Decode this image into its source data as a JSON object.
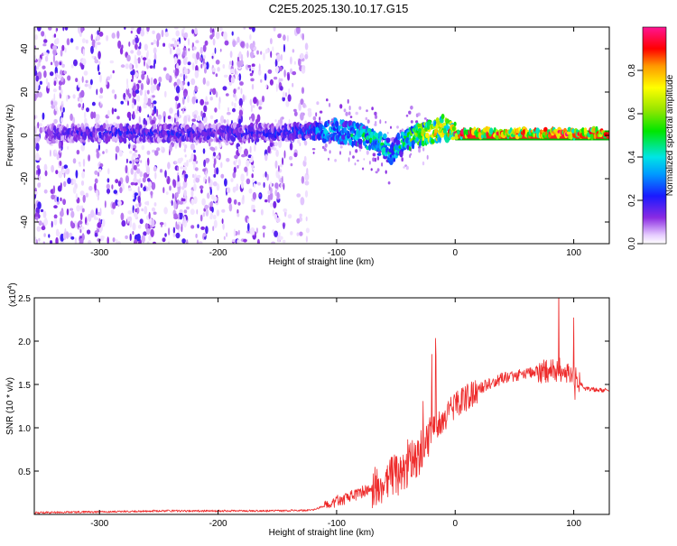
{
  "title": "C2E5.2025.130.10.17.G15",
  "chart_data": [
    {
      "type": "heatmap",
      "xlabel": "Height of straight line (km)",
      "ylabel": "Frequency (Hz)",
      "xlim": [
        -355,
        130
      ],
      "ylim": [
        -50,
        50
      ],
      "xticks": [
        -300,
        -200,
        -100,
        0,
        100
      ],
      "yticks": [
        -40,
        -20,
        0,
        20,
        40
      ],
      "colorbar": {
        "label": "Normalized spectral amplitude",
        "range": [
          0.0,
          1.0
        ],
        "ticks": [
          0.0,
          0.2,
          0.4,
          0.6,
          0.8
        ],
        "tick_labels": [
          "0.0",
          "0.2",
          "0.4",
          "0.6",
          "0.8"
        ]
      },
      "ridge": {
        "x": [
          -340,
          -300,
          -250,
          -200,
          -150,
          -120,
          -100,
          -90,
          -80,
          -70,
          -60,
          -55,
          -45,
          -35,
          -25,
          -15,
          -10,
          -5,
          0,
          20,
          40,
          60,
          80,
          100,
          125
        ],
        "frequency": [
          1,
          1,
          1,
          1,
          1,
          2,
          2,
          1,
          0,
          -2,
          -5,
          -8,
          -4,
          0,
          1,
          2,
          4,
          2,
          1,
          1,
          1,
          1,
          1,
          1,
          1
        ],
        "amplitude": [
          0.2,
          0.25,
          0.25,
          0.25,
          0.25,
          0.35,
          0.45,
          0.5,
          0.55,
          0.55,
          0.5,
          0.45,
          0.55,
          0.7,
          0.8,
          0.85,
          0.8,
          0.9,
          0.95,
          0.95,
          0.95,
          0.95,
          0.95,
          0.95,
          0.95
        ]
      },
      "noise_extent_x": [
        -355,
        -120
      ],
      "green_band_frequency": [
        -1.5,
        1.5
      ]
    },
    {
      "type": "line",
      "xlabel": "Height of straight line (km)",
      "ylabel": "SNR (10 * v/v)",
      "scale_label": "(x10",
      "scale_exponent": "4",
      "scale_suffix": ")",
      "xlim": [
        -355,
        130
      ],
      "ylim": [
        0,
        2.5
      ],
      "xticks": [
        -300,
        -200,
        -100,
        0,
        100
      ],
      "yticks": [
        0.5,
        1.0,
        1.5,
        2.0,
        2.5
      ],
      "ytick_labels": [
        "0.5",
        "1.0",
        "1.5",
        "2.0",
        "2.5"
      ],
      "series": [
        {
          "color": "#ee2b2b",
          "x": [
            -355,
            -300,
            -250,
            -200,
            -150,
            -120,
            -110,
            -100,
            -90,
            -80,
            -70,
            -60,
            -50,
            -40,
            -30,
            -20,
            -10,
            0,
            10,
            20,
            30,
            40,
            50,
            60,
            70,
            80,
            90,
            100,
            110,
            120,
            130
          ],
          "y": [
            0.02,
            0.03,
            0.04,
            0.04,
            0.04,
            0.05,
            0.1,
            0.15,
            0.2,
            0.25,
            0.3,
            0.35,
            0.45,
            0.55,
            0.7,
            0.95,
            1.1,
            1.25,
            1.35,
            1.45,
            1.52,
            1.57,
            1.6,
            1.63,
            1.65,
            1.66,
            1.67,
            1.6,
            1.45,
            1.44,
            1.43
          ]
        }
      ]
    }
  ]
}
